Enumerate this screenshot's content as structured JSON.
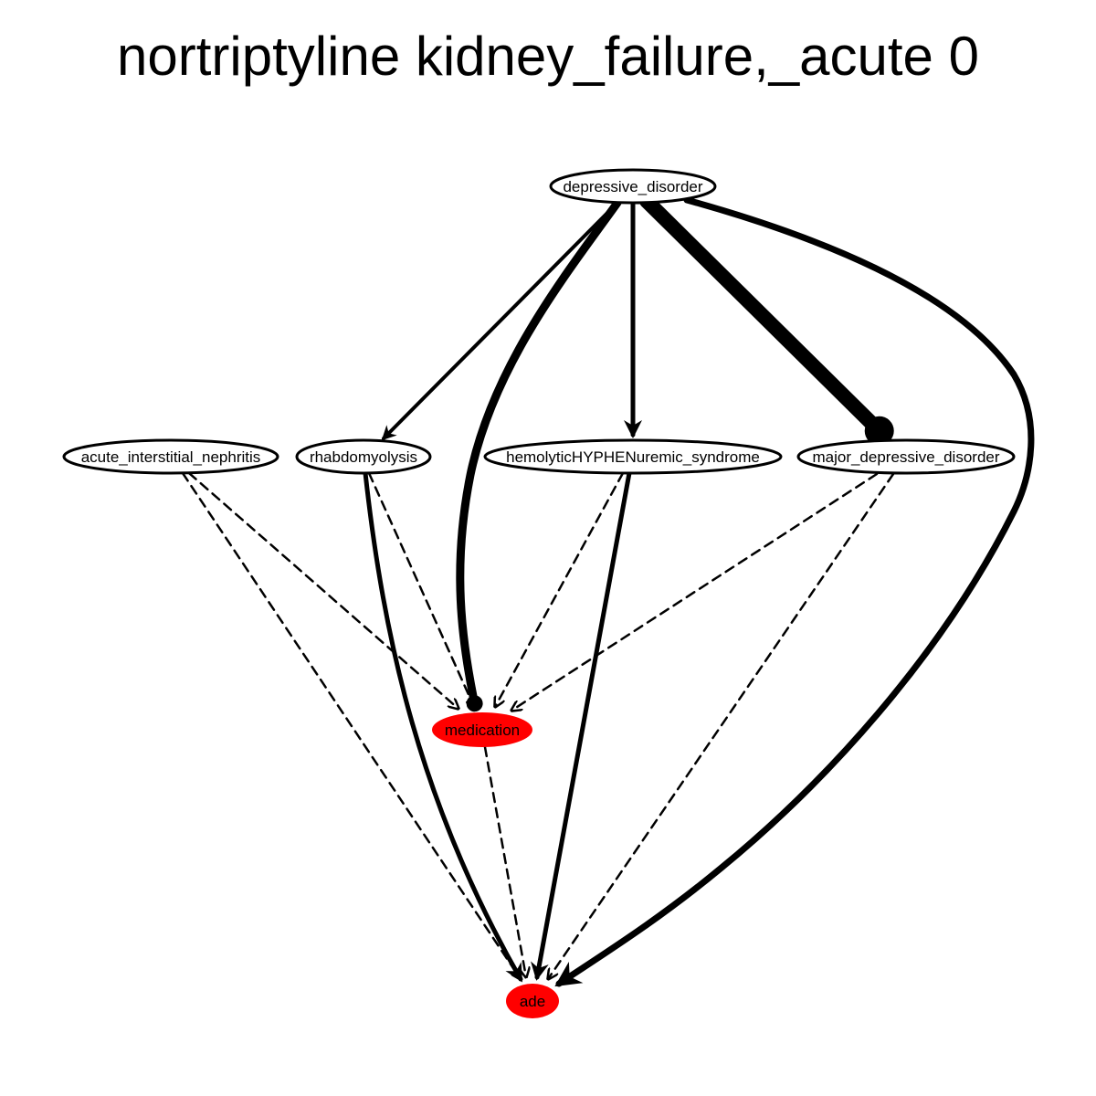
{
  "title": "nortriptyline kidney_failure,_acute 0",
  "colors": {
    "highlight_fill": "#ff0000",
    "default_fill": "#ffffff",
    "stroke": "#000000"
  },
  "nodes": [
    {
      "id": "depressive_disorder",
      "label": "depressive_disorder",
      "highlighted": false
    },
    {
      "id": "acute_interstitial_nephritis",
      "label": "acute_interstitial_nephritis",
      "highlighted": false
    },
    {
      "id": "rhabdomyolysis",
      "label": "rhabdomyolysis",
      "highlighted": false
    },
    {
      "id": "hemolytic_uremic_syndrome",
      "label": "hemolyticHYPHENuremic_syndrome",
      "highlighted": false
    },
    {
      "id": "major_depressive_disorder",
      "label": "major_depressive_disorder",
      "highlighted": false
    },
    {
      "id": "medication",
      "label": "medication",
      "highlighted": true
    },
    {
      "id": "ade",
      "label": "ade",
      "highlighted": true
    }
  ],
  "edges": [
    {
      "from": "depressive_disorder",
      "to": "rhabdomyolysis",
      "style": "solid",
      "weight": 4
    },
    {
      "from": "depressive_disorder",
      "to": "medication",
      "style": "solid",
      "weight": 9
    },
    {
      "from": "depressive_disorder",
      "to": "hemolytic_uremic_syndrome",
      "style": "solid",
      "weight": 5
    },
    {
      "from": "depressive_disorder",
      "to": "major_depressive_disorder",
      "style": "solid",
      "weight": 16
    },
    {
      "from": "depressive_disorder",
      "to": "ade",
      "style": "solid",
      "weight": 7
    },
    {
      "from": "acute_interstitial_nephritis",
      "to": "medication",
      "style": "dashed",
      "weight": 2.5
    },
    {
      "from": "acute_interstitial_nephritis",
      "to": "ade",
      "style": "dashed",
      "weight": 2.5
    },
    {
      "from": "rhabdomyolysis",
      "to": "medication",
      "style": "dashed",
      "weight": 2.5
    },
    {
      "from": "rhabdomyolysis",
      "to": "ade",
      "style": "solid",
      "weight": 5
    },
    {
      "from": "hemolytic_uremic_syndrome",
      "to": "medication",
      "style": "dashed",
      "weight": 2.5
    },
    {
      "from": "hemolytic_uremic_syndrome",
      "to": "ade",
      "style": "solid",
      "weight": 5
    },
    {
      "from": "major_depressive_disorder",
      "to": "medication",
      "style": "dashed",
      "weight": 2.5
    },
    {
      "from": "major_depressive_disorder",
      "to": "ade",
      "style": "dashed",
      "weight": 2.5
    },
    {
      "from": "medication",
      "to": "ade",
      "style": "dashed",
      "weight": 2.5
    }
  ]
}
